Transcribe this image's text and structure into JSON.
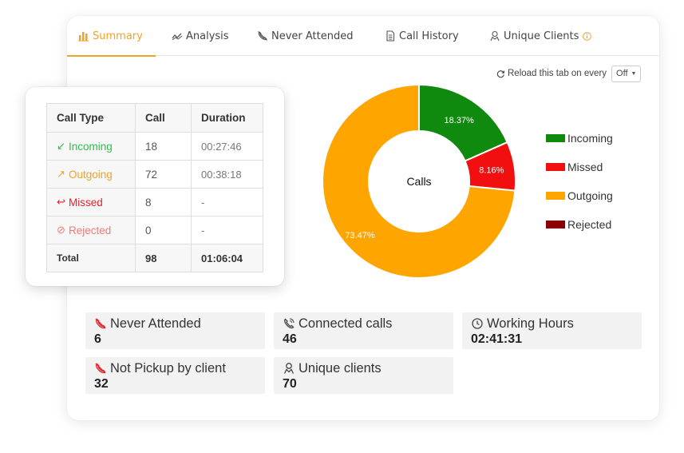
{
  "tabs": [
    {
      "label": "Summary",
      "icon": "bar-chart-icon",
      "active": true
    },
    {
      "label": "Analysis",
      "icon": "trend-line-icon"
    },
    {
      "label": "Never Attended",
      "icon": "phone-off-icon"
    },
    {
      "label": "Call History",
      "icon": "document-icon"
    },
    {
      "label": "Unique Clients",
      "icon": "user-icon",
      "info_icon": "info-icon"
    }
  ],
  "reload": {
    "label": "Reload this tab on every",
    "selected": "Off",
    "icon": "refresh-icon"
  },
  "call_table": {
    "headers": [
      "Call Type",
      "Call",
      "Duration"
    ],
    "rows": [
      {
        "type": "Incoming",
        "symbol": "↙",
        "color": "#2fbf4a",
        "call": "18",
        "duration": "00:27:46"
      },
      {
        "type": "Outgoing",
        "symbol": "↗",
        "color": "#f0a32a",
        "call": "72",
        "duration": "00:38:18"
      },
      {
        "type": "Missed",
        "symbol": "↩",
        "color": "#e8202a",
        "call": "8",
        "duration": "-"
      },
      {
        "type": "Rejected",
        "symbol": "⊘",
        "color": "#ee7a7a",
        "call": "0",
        "duration": "-"
      }
    ],
    "total": {
      "label": "Total",
      "call": "98",
      "duration": "01:06:04"
    }
  },
  "chart_data": {
    "type": "pie",
    "title": "Calls",
    "categories": [
      "Incoming",
      "Missed",
      "Outgoing",
      "Rejected"
    ],
    "values": [
      18.37,
      8.16,
      73.47,
      0
    ],
    "labels": [
      "18.37%",
      "8.16%",
      "73.47%",
      ""
    ],
    "colors": [
      "#0f8a0f",
      "#f20f0f",
      "#ffa500",
      "#8b0000"
    ],
    "legend": "right"
  },
  "stats": [
    {
      "label": "Never Attended",
      "value": "6",
      "icon": "phone-off-icon"
    },
    {
      "label": "Connected calls",
      "value": "46",
      "icon": "phone-call-icon"
    },
    {
      "label": "Working Hours",
      "value": "02:41:31",
      "icon": "clock-icon"
    },
    {
      "label": "Not Pickup by client",
      "value": "32",
      "icon": "phone-off-icon"
    },
    {
      "label": "Unique clients",
      "value": "70",
      "icon": "user-icon"
    }
  ],
  "colors": {
    "accent": "#f0a32a",
    "danger": "#e8202a"
  }
}
